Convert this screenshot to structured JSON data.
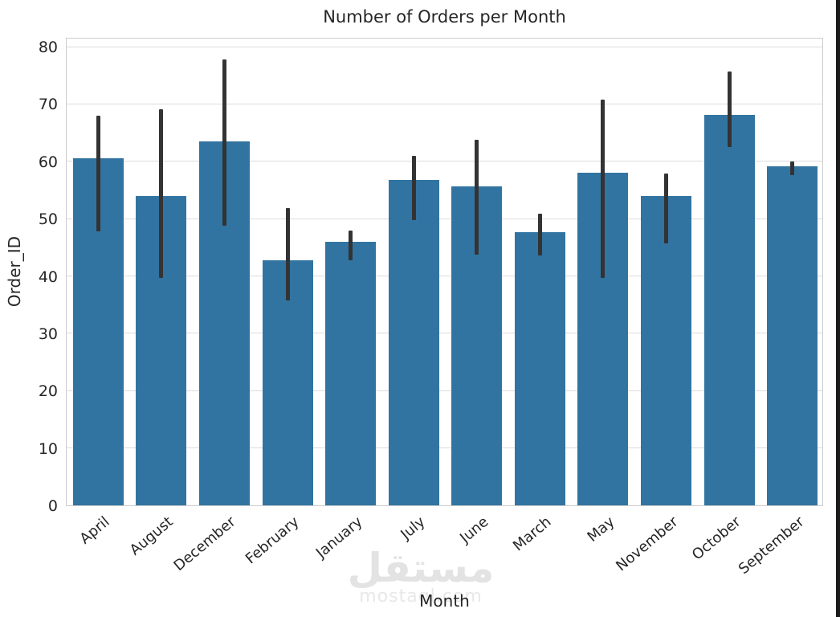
{
  "page": {
    "background_color": "#ffffff",
    "right_edge_strip_color": "#1c1c1c"
  },
  "watermark": {
    "logo_text": "مستقل",
    "domain_text": "mostaql.com",
    "logo_color": "#e3e3e3",
    "domain_color": "#e8e8e8"
  },
  "chart_data": {
    "type": "bar",
    "title": "Number of Orders per Month",
    "xlabel": "Month",
    "ylabel": "Order_ID",
    "categories": [
      "April",
      "August",
      "December",
      "February",
      "January",
      "July",
      "June",
      "March",
      "May",
      "November",
      "October",
      "September"
    ],
    "values": [
      60.5,
      54.0,
      63.5,
      42.7,
      45.9,
      56.7,
      55.6,
      47.6,
      58.0,
      54.0,
      68.1,
      59.2
    ],
    "error_low": [
      48.1,
      40.0,
      49.0,
      36.0,
      43.0,
      50.0,
      44.0,
      43.8,
      39.9,
      45.9,
      62.8,
      57.9
    ],
    "error_high": [
      68.2,
      69.3,
      78.1,
      52.2,
      48.2,
      61.2,
      64.1,
      51.2,
      71.1,
      58.2,
      75.9,
      60.2
    ],
    "y_ticks": [
      0,
      10,
      20,
      30,
      40,
      50,
      60,
      70,
      80
    ],
    "ylim": [
      0,
      81.7
    ],
    "grid": "horizontal",
    "legend_position": "none",
    "bar_color": "#3274a1",
    "error_bar_color": "#333333",
    "gridline_color": "#dcdcdc",
    "spine_color": "#cccccc",
    "text_color": "#262626"
  }
}
